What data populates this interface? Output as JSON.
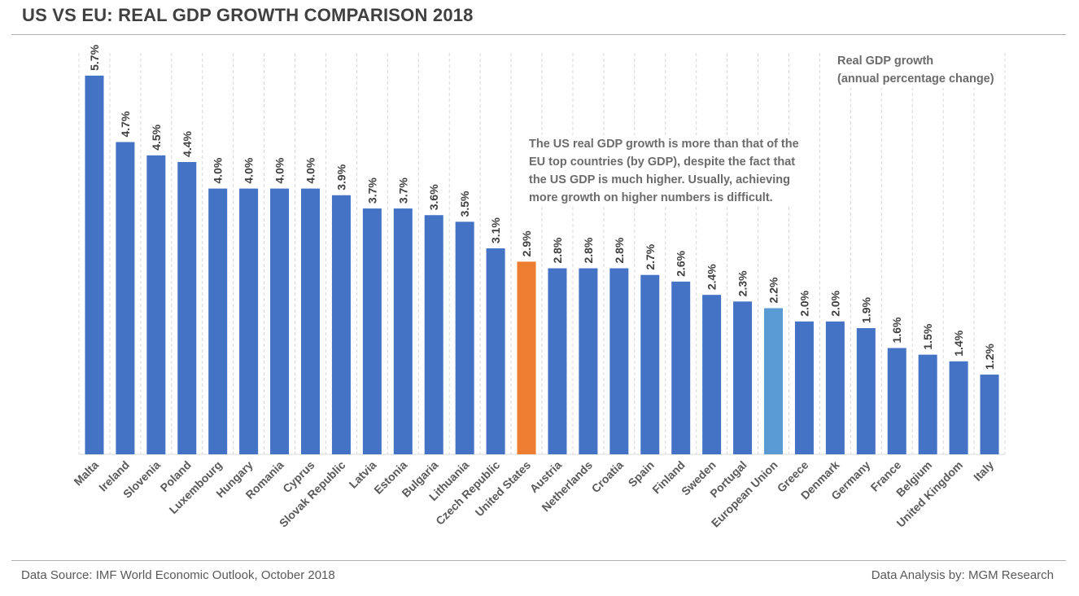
{
  "header": {
    "title": "US VS EU: REAL GDP GROWTH COMPARISON 2018"
  },
  "footer": {
    "source": "Data Source: IMF World Economic Outlook, October 2018",
    "credit": "Data Analysis by: MGM Research"
  },
  "annotations": {
    "legend_line1": "Real GDP growth",
    "legend_line2": "(annual percentage change)",
    "note_lines": [
      "The US real GDP growth is more than that of the",
      "EU top countries (by GDP), despite the fact that",
      "the US GDP is much higher. Usually, achieving",
      "more growth on higher numbers is difficult."
    ]
  },
  "colors": {
    "default": "#4472C4",
    "united_states": "#ED7D31",
    "european_union": "#5B9BD5",
    "grid": "#d9d9d9",
    "label": "#404040"
  },
  "chart_data": {
    "type": "bar",
    "title": "US VS EU: REAL GDP GROWTH COMPARISON 2018",
    "categories": [
      "Malta",
      "Ireland",
      "Slovenia",
      "Poland",
      "Luxembourg",
      "Hungary",
      "Romania",
      "Cyprus",
      "Slovak Republic",
      "Latvia",
      "Estonia",
      "Bulgaria",
      "Lithuania",
      "Czech Republic",
      "United States",
      "Austria",
      "Netherlands",
      "Croatia",
      "Spain",
      "Finland",
      "Sweden",
      "Portugal",
      "European Union",
      "Greece",
      "Denmark",
      "Germany",
      "France",
      "Belgium",
      "United Kingdom",
      "Italy"
    ],
    "values": [
      5.7,
      4.7,
      4.5,
      4.4,
      4.0,
      4.0,
      4.0,
      4.0,
      3.9,
      3.7,
      3.7,
      3.6,
      3.5,
      3.1,
      2.9,
      2.8,
      2.8,
      2.8,
      2.7,
      2.6,
      2.4,
      2.3,
      2.2,
      2.0,
      2.0,
      1.9,
      1.6,
      1.5,
      1.4,
      1.2
    ],
    "data_labels": [
      "5.7%",
      "4.7%",
      "4.5%",
      "4.4%",
      "4.0%",
      "4.0%",
      "4.0%",
      "4.0%",
      "3.9%",
      "3.7%",
      "3.7%",
      "3.6%",
      "3.5%",
      "3.1%",
      "2.9%",
      "2.8%",
      "2.8%",
      "2.8%",
      "2.7%",
      "2.6%",
      "2.4%",
      "2.3%",
      "2.2%",
      "2.0%",
      "2.0%",
      "1.9%",
      "1.6%",
      "1.5%",
      "1.4%",
      "1.2%"
    ],
    "highlight": {
      "United States": "#ED7D31",
      "European Union": "#5B9BD5"
    },
    "ylabel": "",
    "xlabel": "",
    "ylim": [
      0,
      6
    ],
    "grid": "vertical dashed category separators",
    "legend": "none"
  }
}
